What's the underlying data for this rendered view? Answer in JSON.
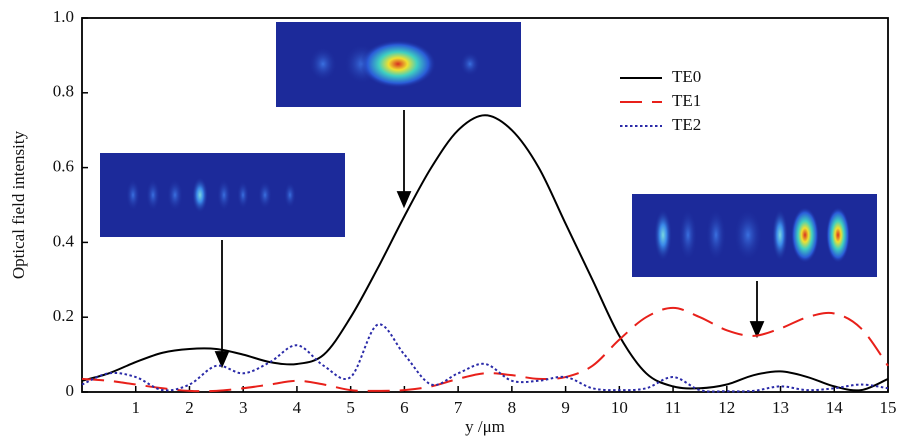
{
  "chart_data": {
    "type": "line",
    "x_label": "y /μm",
    "y_label": "Optical field intensity",
    "x": [
      0,
      0.5,
      1,
      1.5,
      2,
      2.5,
      3,
      3.5,
      4,
      4.5,
      5,
      5.5,
      6,
      6.5,
      7,
      7.5,
      8,
      8.5,
      9,
      9.5,
      10,
      10.5,
      11,
      11.5,
      12,
      12.5,
      13,
      13.5,
      14,
      14.5,
      15
    ],
    "series": [
      {
        "name": "TE0",
        "color": "#000000",
        "dash": "solid",
        "values": [
          0.03,
          0.05,
          0.08,
          0.105,
          0.115,
          0.115,
          0.1,
          0.08,
          0.075,
          0.1,
          0.2,
          0.33,
          0.47,
          0.6,
          0.7,
          0.74,
          0.7,
          0.6,
          0.45,
          0.3,
          0.15,
          0.05,
          0.015,
          0.01,
          0.02,
          0.045,
          0.055,
          0.04,
          0.015,
          0.005,
          0.035
        ]
      },
      {
        "name": "TE1",
        "color": "#e8201a",
        "dash": "long-dash",
        "values": [
          0.035,
          0.03,
          0.02,
          0.01,
          0.003,
          0.003,
          0.01,
          0.02,
          0.03,
          0.02,
          0.005,
          0.003,
          0.005,
          0.015,
          0.035,
          0.05,
          0.045,
          0.035,
          0.04,
          0.07,
          0.14,
          0.2,
          0.225,
          0.2,
          0.165,
          0.15,
          0.17,
          0.2,
          0.21,
          0.17,
          0.07
        ]
      },
      {
        "name": "TE2",
        "color": "#2a2aa8",
        "dash": "dot",
        "values": [
          0.02,
          0.05,
          0.04,
          0.005,
          0.02,
          0.07,
          0.05,
          0.08,
          0.125,
          0.07,
          0.04,
          0.18,
          0.1,
          0.02,
          0.05,
          0.075,
          0.03,
          0.03,
          0.04,
          0.01,
          0.005,
          0.01,
          0.04,
          0.005,
          0.002,
          0.003,
          0.015,
          0.005,
          0.01,
          0.02,
          0.01
        ]
      }
    ],
    "xlim": [
      0,
      15
    ],
    "xticks": [
      1,
      2,
      3,
      4,
      5,
      6,
      7,
      8,
      9,
      10,
      11,
      12,
      13,
      14,
      15
    ],
    "ylim": [
      0,
      1
    ],
    "yticks": [
      0,
      0.2,
      0.4,
      0.6,
      0.8,
      {
        "value": 1,
        "label": "1.0"
      }
    ],
    "grid": false,
    "legend": "upper right"
  }
}
